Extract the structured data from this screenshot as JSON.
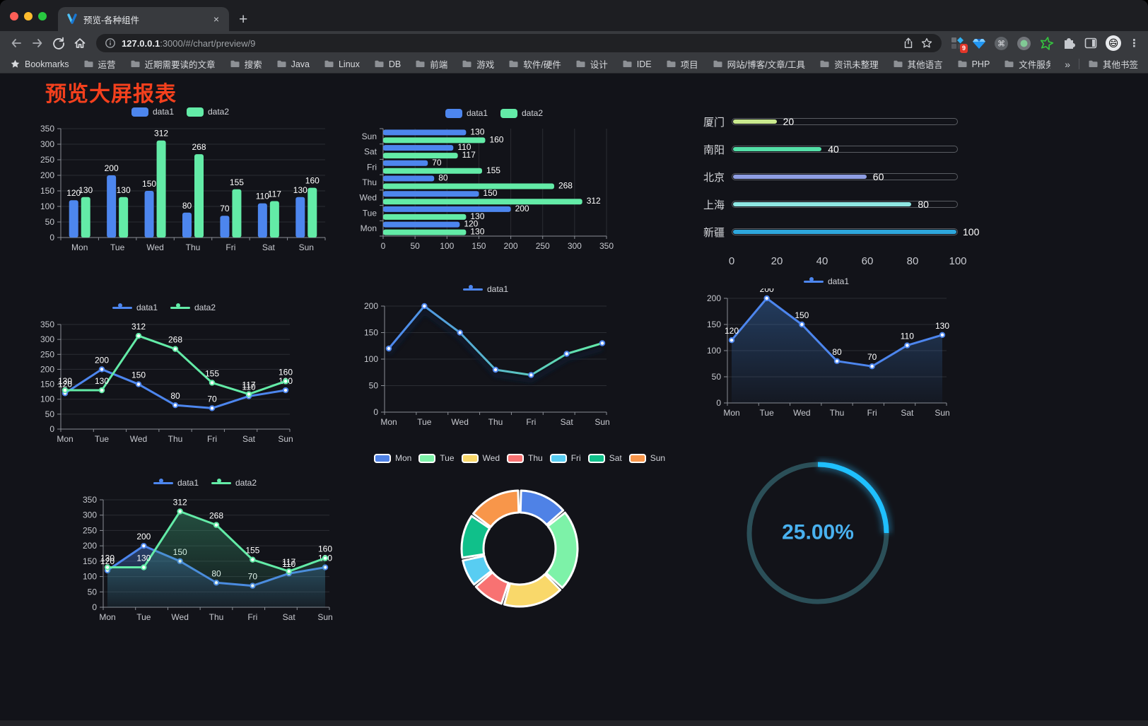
{
  "browser": {
    "tab_title": "预览-各种组件",
    "close_label": "×",
    "new_tab_label": "+",
    "url_host": "127.0.0.1",
    "url_rest": ":3000/#/chart/preview/9",
    "bookmarks_root": "Bookmarks",
    "bookmarks": [
      "运营",
      "近期需要读的文章",
      "搜索",
      "Java",
      "Linux",
      "DB",
      "前端",
      "游戏",
      "软件/硬件",
      "设计",
      "IDE",
      "项目",
      "网站/博客/文章/工具",
      "资讯未整理",
      "其他语言",
      "PHP",
      "文件服务器"
    ],
    "bookmarks_overflow": "»",
    "other_bookmarks": "其他书签",
    "extension_badge": "9",
    "profile_emoji": "😄",
    "kebab": "⋮"
  },
  "page": {
    "title": "预览大屏报表"
  },
  "colors": {
    "title_red": "#f4401d",
    "data1": "#4d86ee",
    "data2": "#63eba7",
    "axis": "#8a8e95",
    "grid": "#2b2d33",
    "tick_text": "#c7c9cf"
  },
  "chart_data": [
    {
      "id": "c1",
      "type": "bar",
      "categories": [
        "Mon",
        "Tue",
        "Wed",
        "Thu",
        "Fri",
        "Sat",
        "Sun"
      ],
      "series": [
        {
          "name": "data1",
          "color": "#4d86ee",
          "values": [
            120,
            200,
            150,
            80,
            70,
            110,
            130
          ]
        },
        {
          "name": "data2",
          "color": "#63eba7",
          "values": [
            130,
            130,
            312,
            268,
            155,
            117,
            160
          ]
        }
      ],
      "ylim": [
        0,
        350
      ],
      "ytick_step": 50,
      "labels": true,
      "legend_position": "top",
      "grid": true
    },
    {
      "id": "c2",
      "type": "bar-horizontal",
      "categories": [
        "Mon",
        "Tue",
        "Wed",
        "Thu",
        "Fri",
        "Sat",
        "Sun"
      ],
      "series": [
        {
          "name": "data1",
          "color": "#4d86ee",
          "values": [
            120,
            200,
            150,
            80,
            70,
            110,
            130
          ]
        },
        {
          "name": "data2",
          "color": "#63eba7",
          "values": [
            130,
            130,
            312,
            268,
            155,
            117,
            160
          ]
        }
      ],
      "xlim": [
        0,
        350
      ],
      "xtick_step": 50,
      "labels": true,
      "legend_position": "top",
      "grid": true
    },
    {
      "id": "c3",
      "type": "progress",
      "max": 100,
      "xticks": [
        0,
        20,
        40,
        60,
        80,
        100
      ],
      "items": [
        {
          "label": "厦门",
          "value": 20,
          "color": "#c9e98e"
        },
        {
          "label": "南阳",
          "value": 40,
          "color": "#53dfa7"
        },
        {
          "label": "北京",
          "value": 60,
          "color": "#8f9ee3"
        },
        {
          "label": "上海",
          "value": 80,
          "color": "#8fe7e3"
        },
        {
          "label": "新疆",
          "value": 100,
          "color": "#2ea7dd"
        }
      ]
    },
    {
      "id": "c4",
      "type": "line",
      "categories": [
        "Mon",
        "Tue",
        "Wed",
        "Thu",
        "Fri",
        "Sat",
        "Sun"
      ],
      "series": [
        {
          "name": "data1",
          "color": "#4d86ee",
          "values": [
            120,
            200,
            150,
            80,
            70,
            110,
            130
          ]
        },
        {
          "name": "data2",
          "color": "#63eba7",
          "values": [
            130,
            130,
            312,
            268,
            155,
            117,
            160
          ]
        }
      ],
      "ylim": [
        0,
        350
      ],
      "ytick_step": 50,
      "labels": true,
      "legend_position": "top",
      "grid": true
    },
    {
      "id": "c5",
      "type": "line",
      "categories": [
        "Mon",
        "Tue",
        "Wed",
        "Thu",
        "Fri",
        "Sat",
        "Sun"
      ],
      "series": [
        {
          "name": "data1",
          "color_gradient": [
            "#4d86ee",
            "#63eba7"
          ],
          "values": [
            120,
            200,
            150,
            80,
            70,
            110,
            130
          ]
        }
      ],
      "ylim": [
        0,
        200
      ],
      "ytick_step": 50,
      "labels": false,
      "shadow": true,
      "legend_position": "top",
      "grid": true
    },
    {
      "id": "c6",
      "type": "area",
      "categories": [
        "Mon",
        "Tue",
        "Wed",
        "Thu",
        "Fri",
        "Sat",
        "Sun"
      ],
      "series": [
        {
          "name": "data1",
          "color": "#4d86ee",
          "area_color": "#3f7fd0",
          "values": [
            120,
            200,
            150,
            80,
            70,
            110,
            130
          ]
        }
      ],
      "ylim": [
        0,
        200
      ],
      "ytick_step": 50,
      "labels": true,
      "legend_position": "top",
      "grid": true
    },
    {
      "id": "c7",
      "type": "area",
      "categories": [
        "Mon",
        "Tue",
        "Wed",
        "Thu",
        "Fri",
        "Sat",
        "Sun"
      ],
      "series": [
        {
          "name": "data1",
          "color": "#4d86ee",
          "area_color": "#4d87ee",
          "values": [
            120,
            200,
            150,
            80,
            70,
            110,
            130
          ]
        },
        {
          "name": "data2",
          "color": "#63eba7",
          "area_color": "#3fae7d",
          "values": [
            130,
            130,
            312,
            268,
            155,
            117,
            160
          ]
        }
      ],
      "ylim": [
        0,
        350
      ],
      "ytick_step": 50,
      "labels": true,
      "legend_position": "top",
      "grid": true
    },
    {
      "id": "c8",
      "type": "pie",
      "inner_radius_ratio": 0.62,
      "legend_position": "top",
      "items": [
        {
          "name": "Mon",
          "value": 120,
          "color": "#4f82e6"
        },
        {
          "name": "Tue",
          "value": 200,
          "color": "#7df2a8"
        },
        {
          "name": "Wed",
          "value": 150,
          "color": "#f9d86a"
        },
        {
          "name": "Thu",
          "value": 80,
          "color": "#f87272"
        },
        {
          "name": "Fri",
          "value": 70,
          "color": "#58cdf2"
        },
        {
          "name": "Sat",
          "value": 110,
          "color": "#10c08a"
        },
        {
          "name": "Sun",
          "value": 130,
          "color": "#f8964a"
        }
      ]
    },
    {
      "id": "c9",
      "type": "gauge",
      "value": 25,
      "display": "25.00%",
      "color": "#1fc0ff",
      "track_color": "#2b4f58",
      "text_color": "#49b1ef"
    }
  ]
}
